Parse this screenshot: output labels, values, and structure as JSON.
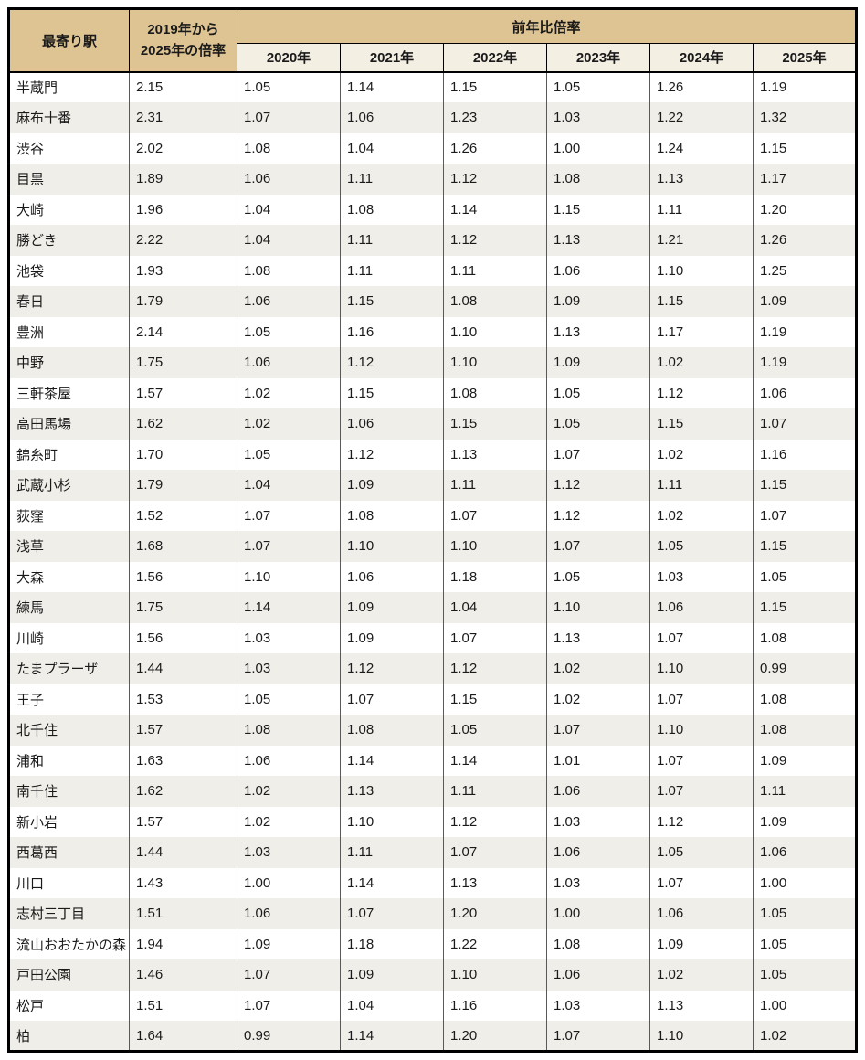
{
  "chart_data": {
    "type": "table",
    "header": {
      "station": "最寄り駅",
      "overall": "2019年から\n2025年の倍率",
      "group": "前年比倍率",
      "years": [
        "2020年",
        "2021年",
        "2022年",
        "2023年",
        "2024年",
        "2025年"
      ]
    },
    "rows": [
      {
        "station": "半蔵門",
        "overall": "2.15",
        "yearly": [
          "1.05",
          "1.14",
          "1.15",
          "1.05",
          "1.26",
          "1.19"
        ]
      },
      {
        "station": "麻布十番",
        "overall": "2.31",
        "yearly": [
          "1.07",
          "1.06",
          "1.23",
          "1.03",
          "1.22",
          "1.32"
        ]
      },
      {
        "station": "渋谷",
        "overall": "2.02",
        "yearly": [
          "1.08",
          "1.04",
          "1.26",
          "1.00",
          "1.24",
          "1.15"
        ]
      },
      {
        "station": "目黒",
        "overall": "1.89",
        "yearly": [
          "1.06",
          "1.11",
          "1.12",
          "1.08",
          "1.13",
          "1.17"
        ]
      },
      {
        "station": "大崎",
        "overall": "1.96",
        "yearly": [
          "1.04",
          "1.08",
          "1.14",
          "1.15",
          "1.11",
          "1.20"
        ]
      },
      {
        "station": "勝どき",
        "overall": "2.22",
        "yearly": [
          "1.04",
          "1.11",
          "1.12",
          "1.13",
          "1.21",
          "1.26"
        ]
      },
      {
        "station": "池袋",
        "overall": "1.93",
        "yearly": [
          "1.08",
          "1.11",
          "1.11",
          "1.06",
          "1.10",
          "1.25"
        ]
      },
      {
        "station": "春日",
        "overall": "1.79",
        "yearly": [
          "1.06",
          "1.15",
          "1.08",
          "1.09",
          "1.15",
          "1.09"
        ]
      },
      {
        "station": "豊洲",
        "overall": "2.14",
        "yearly": [
          "1.05",
          "1.16",
          "1.10",
          "1.13",
          "1.17",
          "1.19"
        ]
      },
      {
        "station": "中野",
        "overall": "1.75",
        "yearly": [
          "1.06",
          "1.12",
          "1.10",
          "1.09",
          "1.02",
          "1.19"
        ]
      },
      {
        "station": "三軒茶屋",
        "overall": "1.57",
        "yearly": [
          "1.02",
          "1.15",
          "1.08",
          "1.05",
          "1.12",
          "1.06"
        ]
      },
      {
        "station": "高田馬場",
        "overall": "1.62",
        "yearly": [
          "1.02",
          "1.06",
          "1.15",
          "1.05",
          "1.15",
          "1.07"
        ]
      },
      {
        "station": "錦糸町",
        "overall": "1.70",
        "yearly": [
          "1.05",
          "1.12",
          "1.13",
          "1.07",
          "1.02",
          "1.16"
        ]
      },
      {
        "station": "武蔵小杉",
        "overall": "1.79",
        "yearly": [
          "1.04",
          "1.09",
          "1.11",
          "1.12",
          "1.11",
          "1.15"
        ]
      },
      {
        "station": "荻窪",
        "overall": "1.52",
        "yearly": [
          "1.07",
          "1.08",
          "1.07",
          "1.12",
          "1.02",
          "1.07"
        ]
      },
      {
        "station": "浅草",
        "overall": "1.68",
        "yearly": [
          "1.07",
          "1.10",
          "1.10",
          "1.07",
          "1.05",
          "1.15"
        ]
      },
      {
        "station": "大森",
        "overall": "1.56",
        "yearly": [
          "1.10",
          "1.06",
          "1.18",
          "1.05",
          "1.03",
          "1.05"
        ]
      },
      {
        "station": "練馬",
        "overall": "1.75",
        "yearly": [
          "1.14",
          "1.09",
          "1.04",
          "1.10",
          "1.06",
          "1.15"
        ]
      },
      {
        "station": "川崎",
        "overall": "1.56",
        "yearly": [
          "1.03",
          "1.09",
          "1.07",
          "1.13",
          "1.07",
          "1.08"
        ]
      },
      {
        "station": "たまプラーザ",
        "overall": "1.44",
        "yearly": [
          "1.03",
          "1.12",
          "1.12",
          "1.02",
          "1.10",
          "0.99"
        ]
      },
      {
        "station": "王子",
        "overall": "1.53",
        "yearly": [
          "1.05",
          "1.07",
          "1.15",
          "1.02",
          "1.07",
          "1.08"
        ]
      },
      {
        "station": "北千住",
        "overall": "1.57",
        "yearly": [
          "1.08",
          "1.08",
          "1.05",
          "1.07",
          "1.10",
          "1.08"
        ]
      },
      {
        "station": "浦和",
        "overall": "1.63",
        "yearly": [
          "1.06",
          "1.14",
          "1.14",
          "1.01",
          "1.07",
          "1.09"
        ]
      },
      {
        "station": "南千住",
        "overall": "1.62",
        "yearly": [
          "1.02",
          "1.13",
          "1.11",
          "1.06",
          "1.07",
          "1.11"
        ]
      },
      {
        "station": "新小岩",
        "overall": "1.57",
        "yearly": [
          "1.02",
          "1.10",
          "1.12",
          "1.03",
          "1.12",
          "1.09"
        ]
      },
      {
        "station": "西葛西",
        "overall": "1.44",
        "yearly": [
          "1.03",
          "1.11",
          "1.07",
          "1.06",
          "1.05",
          "1.06"
        ]
      },
      {
        "station": "川口",
        "overall": "1.43",
        "yearly": [
          "1.00",
          "1.14",
          "1.13",
          "1.03",
          "1.07",
          "1.00"
        ]
      },
      {
        "station": "志村三丁目",
        "overall": "1.51",
        "yearly": [
          "1.06",
          "1.07",
          "1.20",
          "1.00",
          "1.06",
          "1.05"
        ]
      },
      {
        "station": "流山おおたかの森",
        "overall": "1.94",
        "yearly": [
          "1.09",
          "1.18",
          "1.22",
          "1.08",
          "1.09",
          "1.05"
        ]
      },
      {
        "station": "戸田公園",
        "overall": "1.46",
        "yearly": [
          "1.07",
          "1.09",
          "1.10",
          "1.06",
          "1.02",
          "1.05"
        ]
      },
      {
        "station": "松戸",
        "overall": "1.51",
        "yearly": [
          "1.07",
          "1.04",
          "1.16",
          "1.03",
          "1.13",
          "1.00"
        ]
      },
      {
        "station": "柏",
        "overall": "1.64",
        "yearly": [
          "0.99",
          "1.14",
          "1.20",
          "1.07",
          "1.10",
          "1.02"
        ]
      }
    ]
  },
  "colors": {
    "header_tan": "#dec493",
    "year_row_cream": "#f4efe3",
    "row_stripe": "#f0eee9",
    "row_white": "#ffffff",
    "outer_border": "#000000",
    "column_grid": "#595959",
    "text": "#1a1a1a"
  }
}
